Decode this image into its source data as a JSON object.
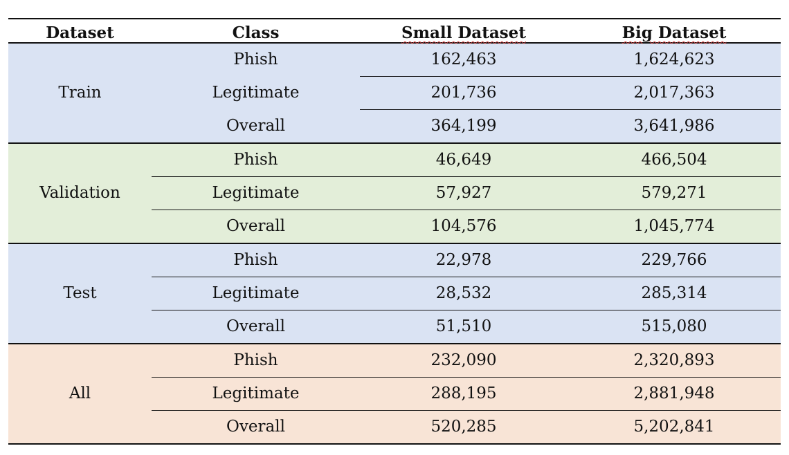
{
  "headers": [
    "Dataset",
    "Class",
    "Small Dataset",
    "Big Dataset"
  ],
  "groups": [
    {
      "name": "Train",
      "color": "#dae3f3",
      "rows": [
        {
          "cls": "Phish",
          "small": "162,463",
          "big": "1,624,623"
        },
        {
          "cls": "Legitimate",
          "small": "201,736",
          "big": "2,017,363"
        },
        {
          "cls": "Overall",
          "small": "364,199",
          "big": "3,641,986"
        }
      ]
    },
    {
      "name": "Validation",
      "color": "#e3eed9",
      "rows": [
        {
          "cls": "Phish",
          "small": "46,649",
          "big": "466,504"
        },
        {
          "cls": "Legitimate",
          "small": "57,927",
          "big": "579,271"
        },
        {
          "cls": "Overall",
          "small": "104,576",
          "big": "1,045,774"
        }
      ]
    },
    {
      "name": "Test",
      "color": "#dae3f3",
      "rows": [
        {
          "cls": "Phish",
          "small": "22,978",
          "big": "229,766"
        },
        {
          "cls": "Legitimate",
          "small": "28,532",
          "big": "285,314"
        },
        {
          "cls": "Overall",
          "small": "51,510",
          "big": "515,080"
        }
      ]
    },
    {
      "name": "All",
      "color": "#f8e4d6",
      "rows": [
        {
          "cls": "Phish",
          "small": "232,090",
          "big": "2,320,893"
        },
        {
          "cls": "Legitimate",
          "small": "288,195",
          "big": "2,881,948"
        },
        {
          "cls": "Overall",
          "small": "520,285",
          "big": "5,202,841"
        }
      ]
    }
  ]
}
